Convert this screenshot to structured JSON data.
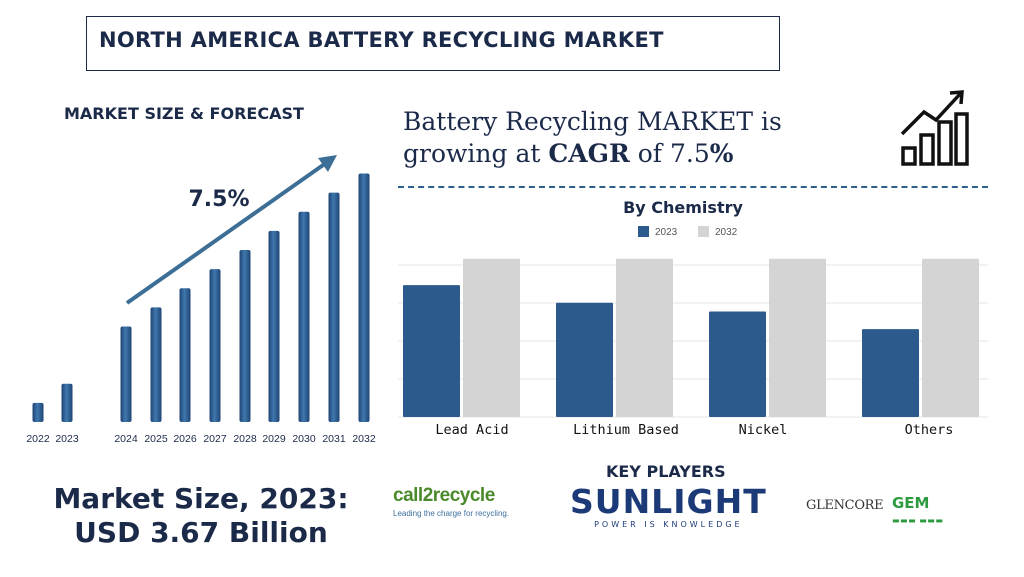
{
  "title": "NORTH AMERICA BATTERY RECYCLING MARKET",
  "forecast": {
    "heading": "MARKET SIZE & FORECAST",
    "cagr_label": "7.5%"
  },
  "growth_statement": {
    "part1": "Battery Recycling MARKET is growing at ",
    "bold1": "CAGR",
    "part2": " of 7.5",
    "bold2": "%"
  },
  "market_size": {
    "line1": "Market Size, 2023:",
    "line2": "USD 3.67 Billion"
  },
  "key_players": {
    "heading": "KEY PLAYERS",
    "call2recycle": "call2recycle",
    "call2recycle_tagline": "Leading the charge for recycling.",
    "sunlight": "SUNLIGHT",
    "sunlight_tagline": "POWER IS KNOWLEDGE",
    "glencore": "GLENCORE",
    "gem": "GEM"
  },
  "colors": {
    "navy": "#1c2a4a",
    "bar_blue": "#2c5a8c",
    "bar_grey": "#d4d4d4",
    "arrow": "#3d6f96"
  },
  "icons": [
    "growth-chart-icon"
  ],
  "chart_data": [
    {
      "type": "bar",
      "title": "MARKET SIZE & FORECAST",
      "categories": [
        "2022",
        "2023",
        "2024",
        "2025",
        "2026",
        "2027",
        "2028",
        "2029",
        "2030",
        "2031",
        "2032"
      ],
      "values": [
        1.0,
        2.0,
        5.0,
        6.0,
        7.0,
        8.0,
        9.0,
        10.0,
        11.0,
        12.0,
        13.0
      ],
      "annotations": [
        "7.5%"
      ],
      "ylim": [
        0,
        13.5
      ],
      "grid": false,
      "legend": "none"
    },
    {
      "type": "bar",
      "title": "By Chemistry",
      "categories": [
        "Lead Acid",
        "Lithium Based",
        "Nickel",
        "Others"
      ],
      "series": [
        {
          "name": "2023",
          "values": [
            3.0,
            2.6,
            2.4,
            2.0
          ]
        },
        {
          "name": "2032",
          "values": [
            3.6,
            3.6,
            3.6,
            3.6
          ]
        }
      ],
      "ylim": [
        0,
        3.8
      ],
      "grid": true,
      "legend": "top-center"
    }
  ]
}
